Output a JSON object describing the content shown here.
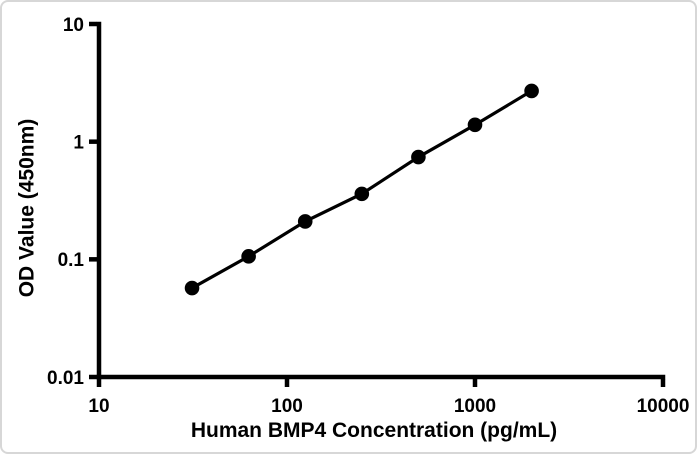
{
  "figure": {
    "ink_color": "#000000",
    "background_color": "#ffffff",
    "border_color": "#d7d7d7"
  },
  "chart_data": {
    "type": "line",
    "subtype": "scatter-line-standard-curve",
    "x_scale": "log",
    "y_scale": "log",
    "x": [
      31.25,
      62.5,
      125,
      250,
      500,
      1000,
      2000
    ],
    "y": [
      0.057,
      0.106,
      0.21,
      0.36,
      0.74,
      1.39,
      2.7
    ],
    "xlabel": "Human BMP4 Concentration (pg/mL)",
    "ylabel": "OD Value (450nm)",
    "xlim": [
      10,
      10000
    ],
    "ylim": [
      0.01,
      10
    ],
    "x_ticks": [
      10,
      100,
      1000,
      10000
    ],
    "x_tick_labels": [
      "10",
      "100",
      "1000",
      "10000"
    ],
    "y_ticks": [
      10,
      1,
      0.1,
      0.01
    ],
    "y_tick_labels": [
      "10",
      "1",
      "0.1",
      "0.01"
    ],
    "grid": false,
    "legend": false,
    "marker": "filled-circle",
    "marker_color": "#000000",
    "line_color": "#000000"
  }
}
